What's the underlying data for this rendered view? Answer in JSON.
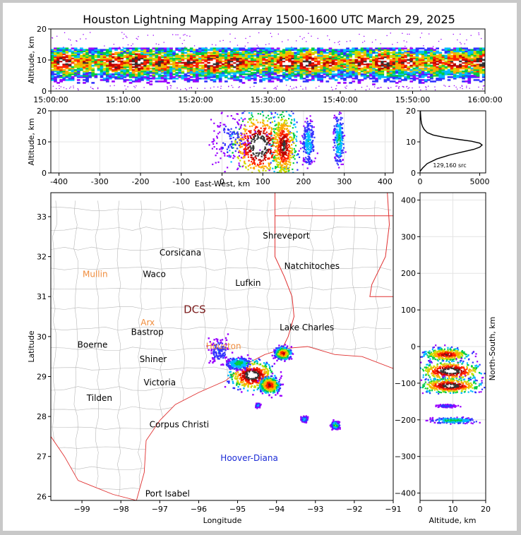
{
  "title": "Houston Lightning Mapping Array 1500-1600 UTC March 29, 2025",
  "colors": {
    "background_frame": "#c8c8c8",
    "state_borders": "#e03030",
    "county_borders": "#b8b8b8",
    "coastline": "#e03030",
    "city_label": "#000000",
    "station_orange": "#f08c3c",
    "station_green": "#66cc33",
    "station_maroon": "#7a1a1a",
    "platform_blue": "#1a2ad6",
    "density_colormap": [
      "#9900ff",
      "#3333ff",
      "#00bbff",
      "#00cc44",
      "#ccdd00",
      "#ffaa00",
      "#ff2200",
      "#bb0000",
      "#333333",
      "#ffffff"
    ]
  },
  "chart_data": [
    {
      "id": "time_height",
      "type": "heatmap",
      "ylabel": "Altitude, km",
      "ylim": [
        0,
        20
      ],
      "yticks": [
        "0",
        "10",
        "20"
      ],
      "xlim": [
        "15:00:00",
        "16:00:00"
      ],
      "xticks": [
        "15:00:00",
        "15:10:00",
        "15:20:00",
        "15:30:00",
        "15:40:00",
        "15:50:00",
        "16:00:00"
      ],
      "band": {
        "alt_min_km": 2,
        "alt_max_km": 14,
        "alt_core_km": 9
      }
    },
    {
      "id": "ew_height",
      "type": "heatmap",
      "xlabel": "East-West, km",
      "ylabel": "Altitude, km",
      "xlim": [
        -420,
        420
      ],
      "ylim": [
        0,
        20
      ],
      "xticks": [
        "-400",
        "-300",
        "-200",
        "-100",
        "0",
        "100",
        "200",
        "300",
        "400"
      ],
      "yticks": [
        "0",
        "10",
        "20"
      ],
      "clusters": [
        {
          "x": 90,
          "alt": 9,
          "wx": 65,
          "wa": 10,
          "intensity": 1.0
        },
        {
          "x": 150,
          "alt": 9,
          "wx": 30,
          "wa": 11,
          "intensity": 0.85
        },
        {
          "x": 210,
          "alt": 10,
          "wx": 15,
          "wa": 7,
          "intensity": 0.3
        },
        {
          "x": 285,
          "alt": 11,
          "wx": 12,
          "wa": 8,
          "intensity": 0.35
        },
        {
          "x": 20,
          "alt": 11,
          "wx": 50,
          "wa": 9,
          "intensity": 0.15
        }
      ]
    },
    {
      "id": "altitude_histogram",
      "type": "line",
      "xlim": [
        0,
        5500
      ],
      "ylim": [
        0,
        20
      ],
      "xticks": [
        "0",
        "5000"
      ],
      "yticks": [
        "0",
        "10",
        "20"
      ],
      "annotation": "129,160 src",
      "x": [
        0,
        200,
        600,
        1400,
        2500,
        3600,
        4500,
        5000,
        5200,
        5000,
        4300,
        3200,
        2000,
        1100,
        600,
        350,
        200,
        120,
        80,
        60,
        40,
        30
      ],
      "y": [
        0.5,
        1.5,
        3,
        4.5,
        5.8,
        6.8,
        7.6,
        8.3,
        9.0,
        9.6,
        10.2,
        10.8,
        11.5,
        12.2,
        13.0,
        14,
        15,
        16,
        17,
        18,
        19,
        20
      ]
    },
    {
      "id": "plan_view_map",
      "type": "scatter",
      "xlabel": "Longitude",
      "ylabel": "Latitude",
      "xlim": [
        -99.8,
        -91.0
      ],
      "ylim": [
        25.9,
        33.6
      ],
      "xticks": [
        "-99",
        "-98",
        "-97",
        "-96",
        "-95",
        "-94",
        "-93",
        "-92",
        "-91"
      ],
      "yticks": [
        "26",
        "27",
        "28",
        "29",
        "30",
        "31",
        "32",
        "33"
      ],
      "cities": [
        {
          "name": "Shreveport",
          "lon": -93.75,
          "lat": 32.52,
          "color": "#000000"
        },
        {
          "name": "Corsicana",
          "lon": -96.47,
          "lat": 32.1,
          "color": "#000000"
        },
        {
          "name": "Mullin",
          "lon": -98.66,
          "lat": 31.56,
          "color": "#f08c3c"
        },
        {
          "name": "Waco",
          "lon": -97.14,
          "lat": 31.56,
          "color": "#000000"
        },
        {
          "name": "Natchitoches",
          "lon": -93.09,
          "lat": 31.76,
          "color": "#000000"
        },
        {
          "name": "Lufkin",
          "lon": -94.73,
          "lat": 31.34,
          "color": "#000000"
        },
        {
          "name": "DCS",
          "lon": -96.1,
          "lat": 30.66,
          "color": "#7a1a1a"
        },
        {
          "name": "Arx",
          "lon": -97.31,
          "lat": 30.35,
          "color": "#f08c3c"
        },
        {
          "name": "Bastrop",
          "lon": -97.32,
          "lat": 30.11,
          "color": "#000000"
        },
        {
          "name": "Lake Charles",
          "lon": -93.22,
          "lat": 30.23,
          "color": "#000000"
        },
        {
          "name": "Houston",
          "lon": -95.36,
          "lat": 29.76,
          "color": "#f08c3c"
        },
        {
          "name": "Boerne",
          "lon": -98.73,
          "lat": 29.79,
          "color": "#000000"
        },
        {
          "name": "Shiner",
          "lon": -97.17,
          "lat": 29.43,
          "color": "#000000"
        },
        {
          "name": "Victoria",
          "lon": -97.0,
          "lat": 28.85,
          "color": "#000000"
        },
        {
          "name": "Tilden",
          "lon": -98.55,
          "lat": 28.46,
          "color": "#000000"
        },
        {
          "name": "Corpus Christi",
          "lon": -96.5,
          "lat": 27.8,
          "color": "#000000"
        },
        {
          "name": "Hoover-Diana",
          "lon": -94.7,
          "lat": 26.96,
          "color": "#1a2ad6"
        },
        {
          "name": "Port Isabel",
          "lon": -96.8,
          "lat": 26.07,
          "color": "#000000"
        }
      ],
      "clusters": [
        {
          "lon": -94.65,
          "lat": 29.05,
          "w": 0.55,
          "h": 0.35,
          "intensity": 1.0
        },
        {
          "lon": -94.2,
          "lat": 28.8,
          "w": 0.25,
          "h": 0.2,
          "intensity": 0.8
        },
        {
          "lon": -95.0,
          "lat": 29.35,
          "w": 0.3,
          "h": 0.15,
          "intensity": 0.4
        },
        {
          "lon": -93.85,
          "lat": 29.6,
          "w": 0.2,
          "h": 0.15,
          "intensity": 0.75
        },
        {
          "lon": -95.5,
          "lat": 29.65,
          "w": 0.25,
          "h": 0.3,
          "intensity": 0.2
        },
        {
          "lon": -93.3,
          "lat": 27.95,
          "w": 0.08,
          "h": 0.06,
          "intensity": 0.35
        },
        {
          "lon": -92.5,
          "lat": 27.8,
          "w": 0.1,
          "h": 0.09,
          "intensity": 0.45
        },
        {
          "lon": -94.5,
          "lat": 28.3,
          "w": 0.05,
          "h": 0.05,
          "intensity": 0.25
        }
      ]
    },
    {
      "id": "ns_height",
      "type": "heatmap",
      "xlabel": "Altitude, km",
      "ylabel": "North-South, km",
      "xlim": [
        0,
        20
      ],
      "ylim": [
        -420,
        420
      ],
      "xticks": [
        "0",
        "10",
        "20"
      ],
      "yticks": [
        "-400",
        "-300",
        "-200",
        "-100",
        "0",
        "100",
        "200",
        "300",
        "400"
      ],
      "clusters": [
        {
          "alt": 8,
          "y": -20,
          "wa": 7,
          "wy": 18,
          "intensity": 0.8
        },
        {
          "alt": 9,
          "y": -65,
          "wa": 9,
          "wy": 25,
          "intensity": 1.0
        },
        {
          "alt": 9,
          "y": -105,
          "wa": 9,
          "wy": 20,
          "intensity": 0.95
        },
        {
          "alt": 10,
          "y": -200,
          "wa": 7,
          "wy": 8,
          "intensity": 0.4
        },
        {
          "alt": 8,
          "y": -160,
          "wa": 3,
          "wy": 4,
          "intensity": 0.2
        }
      ]
    }
  ]
}
